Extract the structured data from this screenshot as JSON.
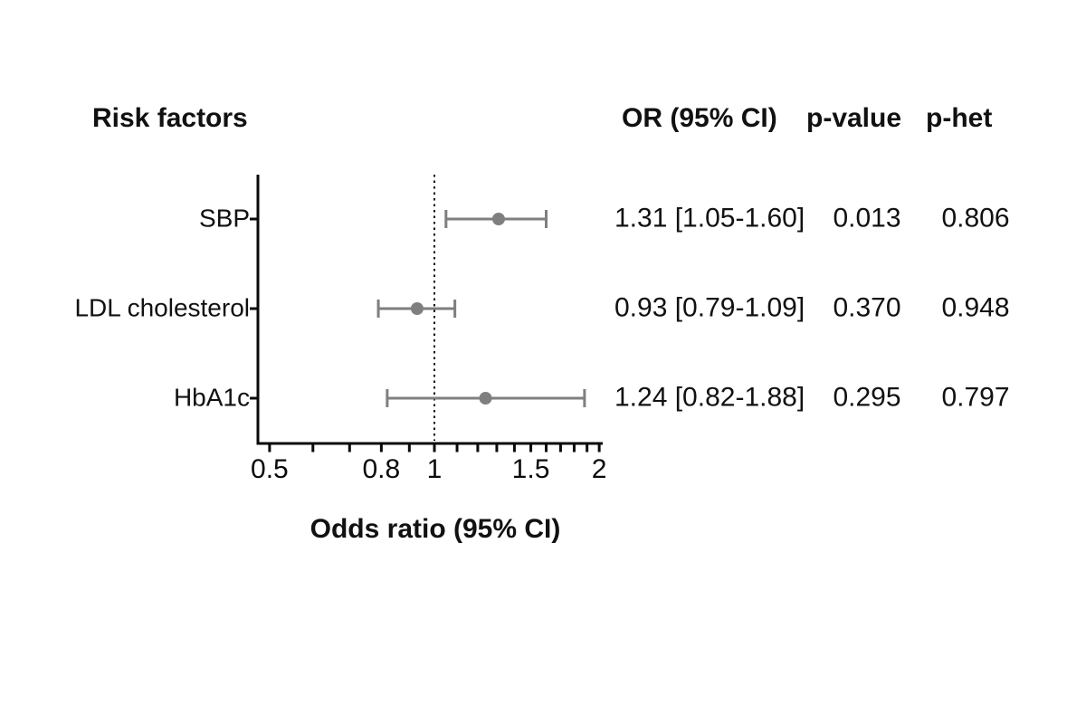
{
  "headers": {
    "risk_factors": "Risk factors",
    "or_ci": "OR (95% CI)",
    "p_value": "p-value",
    "p_het": "p-het"
  },
  "chart_data": {
    "type": "scatter",
    "variant": "forest-plot",
    "xlabel": "Odds ratio (95% CI)",
    "x_scale": "log",
    "xlim": [
      0.5,
      2
    ],
    "x_minor_ticks": [
      0.5,
      0.6,
      0.7,
      0.8,
      0.9,
      1.0,
      1.1,
      1.2,
      1.3,
      1.4,
      1.5,
      1.6,
      1.7,
      1.8,
      1.9,
      2.0
    ],
    "x_labeled_ticks": [
      {
        "value": 0.5,
        "label": "0.5"
      },
      {
        "value": 0.8,
        "label": "0.8"
      },
      {
        "value": 1,
        "label": "1"
      },
      {
        "value": 1.5,
        "label": "1.5"
      },
      {
        "value": 2,
        "label": "2"
      }
    ],
    "reference_line_x": 1,
    "points": [
      {
        "label": "SBP",
        "or": 1.31,
        "ci_low": 1.05,
        "ci_high": 1.6,
        "or_text": "1.31 [1.05-1.60]",
        "p_value": "0.013",
        "p_het": "0.806"
      },
      {
        "label": "LDL cholesterol",
        "or": 0.93,
        "ci_low": 0.79,
        "ci_high": 1.09,
        "or_text": "0.93 [0.79-1.09]",
        "p_value": "0.370",
        "p_het": "0.948"
      },
      {
        "label": "HbA1c",
        "or": 1.24,
        "ci_low": 0.82,
        "ci_high": 1.88,
        "or_text": "1.24 [0.82-1.88]",
        "p_value": "0.295",
        "p_het": "0.797"
      }
    ]
  },
  "colors": {
    "marker": "#7f7f7f",
    "axis": "#0a0a0a",
    "text": "#111111",
    "background": "#ffffff"
  }
}
